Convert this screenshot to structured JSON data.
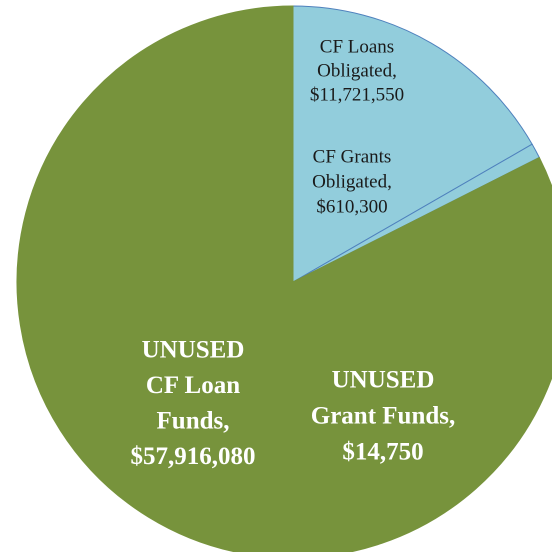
{
  "chart_data": {
    "type": "pie",
    "categories": [
      [
        "CF Loans",
        "Obligated,"
      ],
      [
        "CF Grants",
        "Obligated,"
      ],
      [
        "UNUSED",
        "CF Loan",
        "Funds,"
      ],
      [
        "UNUSED",
        "Grant Funds,"
      ]
    ],
    "values": [
      11721550,
      610300,
      57916080,
      14750
    ],
    "value_labels": [
      "$11,721,550",
      "$610,300",
      "$57,916,080",
      "$14,750"
    ],
    "colors": [
      "#92cddc",
      "#92cddc",
      "#77933c",
      "#77933c"
    ]
  }
}
